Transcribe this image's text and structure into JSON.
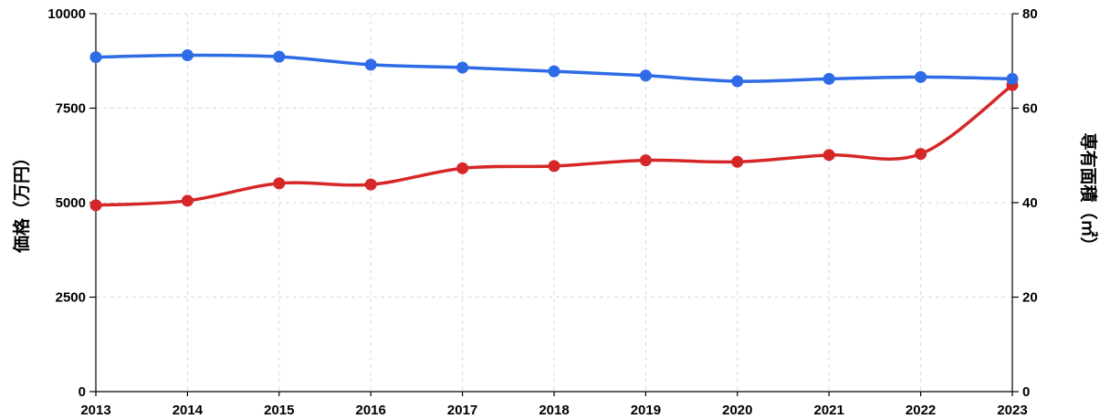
{
  "chart_data": {
    "type": "line",
    "title": "",
    "x": [
      "2013",
      "2014",
      "2015",
      "2016",
      "2017",
      "2018",
      "2019",
      "2020",
      "2021",
      "2022",
      "2023"
    ],
    "xlabel": "",
    "ylabel_left": "価格（万円）",
    "ylabel_right": "専有面積（㎡）",
    "ylim_left": [
      0,
      10000
    ],
    "ylim_right": [
      0,
      80
    ],
    "yticks_left": [
      "0",
      "2500",
      "5000",
      "7500",
      "10000"
    ],
    "yticks_right": [
      "0",
      "20",
      "40",
      "60",
      "80"
    ],
    "grid": true,
    "series": [
      {
        "name": "価格",
        "axis": "left",
        "color": "#d62728",
        "values": [
          4930,
          5050,
          5510,
          5480,
          5910,
          5970,
          6120,
          6080,
          6260,
          6290,
          8110
        ]
      },
      {
        "name": "専有面積",
        "axis": "right",
        "color": "#2e6be6",
        "values": [
          70.8,
          71.2,
          70.9,
          69.2,
          68.6,
          67.8,
          66.9,
          65.7,
          66.2,
          66.6,
          66.2
        ]
      }
    ]
  }
}
